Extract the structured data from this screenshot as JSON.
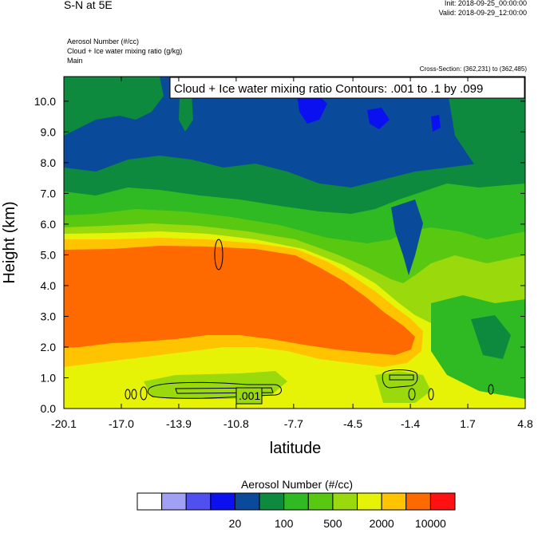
{
  "header": {
    "title": "S-N at 5E",
    "init": "Init: 2018-09-25_00:00:00",
    "valid": "Valid: 2018-09-29_12:00:00",
    "variables": [
      "Aerosol Number   (#/cc)",
      "Cloud + Ice water mixing ratio   (g/kg)",
      "Main"
    ],
    "cross_section": "Cross-Section: (362,231) to (362,485)"
  },
  "chart_data": {
    "type": "heatmap",
    "xlabel": "latitude",
    "ylabel": "Height (km)",
    "xlim": [
      -20.1,
      4.8
    ],
    "ylim": [
      0.0,
      10.8
    ],
    "x_ticks": [
      "-20.1",
      "-17.0",
      "-13.9",
      "-10.8",
      "-7.7",
      "-4.5",
      "-1.4",
      "1.7",
      "4.8"
    ],
    "y_ticks": [
      "0.0",
      "1.0",
      "2.0",
      "3.0",
      "4.0",
      "5.0",
      "6.0",
      "7.0",
      "8.0",
      "9.0",
      "10.0"
    ],
    "contour_title": "Cloud + Ice water mixing ratio Contours: .001 to .1 by .099",
    "contour_label": ".001",
    "contour_levels": [
      0.001,
      0.1
    ],
    "colorbar": {
      "title": "Aerosol Number  (#/cc)",
      "colors": [
        "#ffffff",
        "#a0a0f5",
        "#5050f0",
        "#0a10ef",
        "#0a4a9a",
        "#0e8a3e",
        "#2fba23",
        "#59c811",
        "#9ad90c",
        "#e6f306",
        "#ffc300",
        "#ff6a00",
        "#ff1111"
      ],
      "labels": [
        "20",
        "100",
        "500",
        "2000",
        "10000"
      ],
      "label_positions": [
        4,
        6,
        8,
        10,
        12
      ]
    }
  }
}
